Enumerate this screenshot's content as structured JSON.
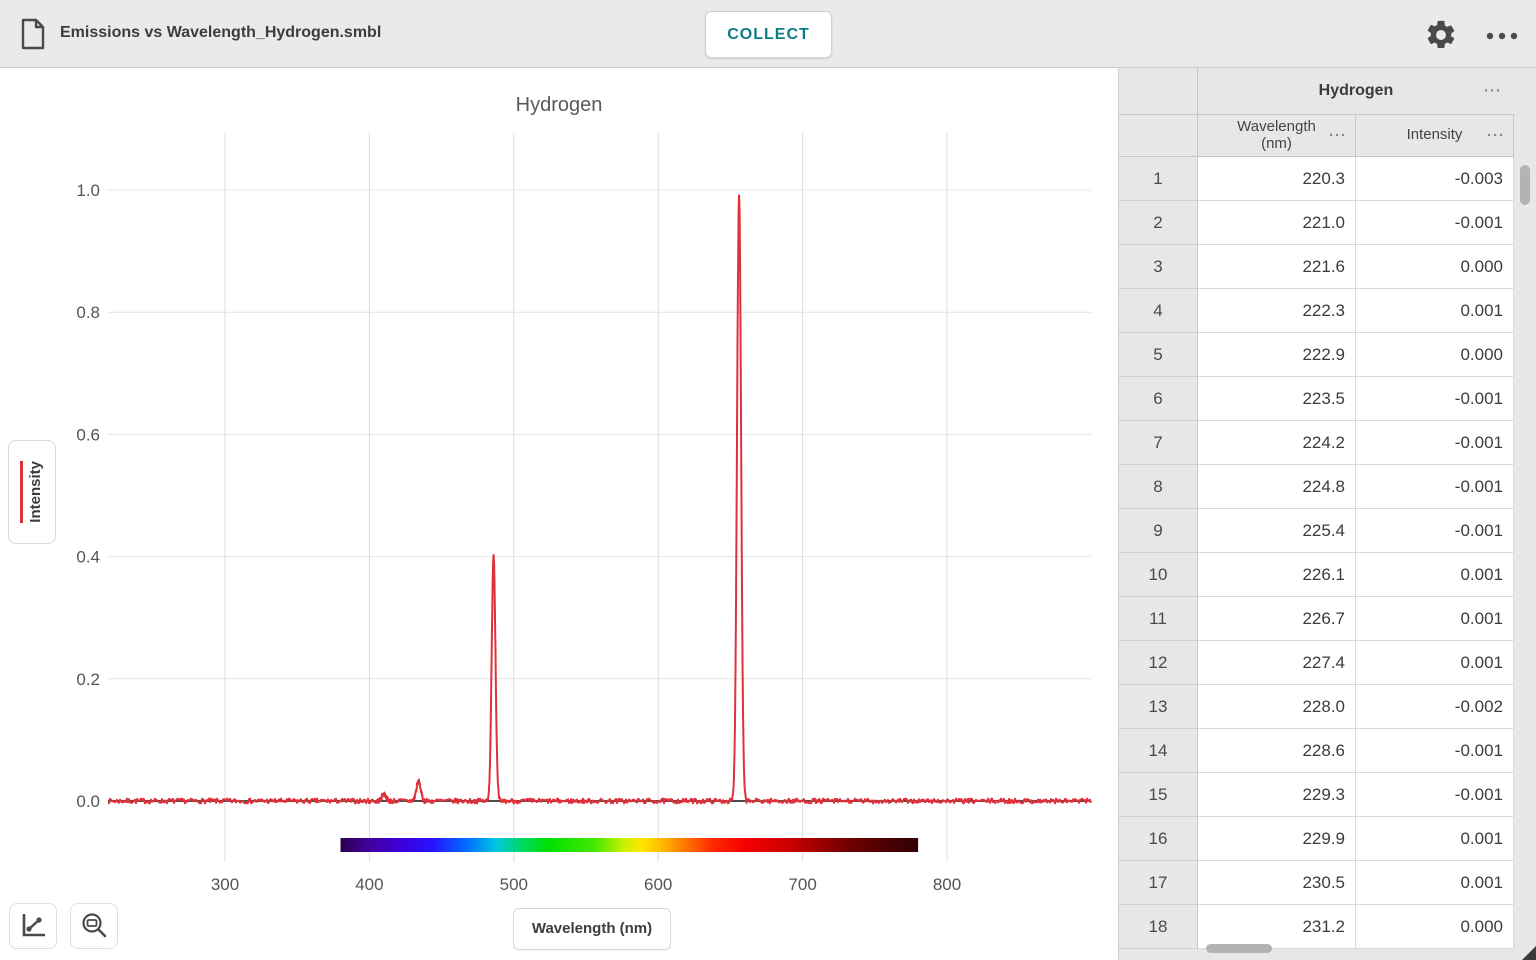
{
  "titlebar": {
    "filename": "Emissions vs Wavelength_Hydrogen.smbl",
    "collect_label": "COLLECT"
  },
  "icons": {
    "more_options": "···"
  },
  "chart_data": {
    "type": "line",
    "title": "Hydrogen",
    "xlabel": "Wavelength (nm)",
    "ylabel": "Intensity",
    "xlim": [
      219,
      898
    ],
    "ylim": [
      -0.1,
      1.09
    ],
    "x_ticks": [
      300,
      400,
      500,
      600,
      700,
      800
    ],
    "y_ticks": [
      "0.0",
      "0.2",
      "0.4",
      "0.6",
      "0.8",
      "1.0"
    ],
    "grid": true,
    "legend_position": "none",
    "series": [
      {
        "name": "Intensity",
        "color": "#e0303a",
        "baseline": 0.0,
        "noise_amplitude": 0.004,
        "peaks": [
          {
            "wavelength_nm": 410,
            "intensity": 0.012,
            "sigma_nm": 1.4
          },
          {
            "wavelength_nm": 434,
            "intensity": 0.032,
            "sigma_nm": 1.5
          },
          {
            "wavelength_nm": 486,
            "intensity": 0.403,
            "sigma_nm": 1.3
          },
          {
            "wavelength_nm": 656,
            "intensity": 0.993,
            "sigma_nm": 1.4
          }
        ]
      }
    ],
    "zero_line_color": "#4c4c4c",
    "spectrum_bar": {
      "from_nm": 380,
      "to_nm": 780,
      "stops": [
        {
          "o": 0.0,
          "c": "#2a004f"
        },
        {
          "o": 0.05,
          "c": "#44009f"
        },
        {
          "o": 0.11,
          "c": "#3c00e0"
        },
        {
          "o": 0.16,
          "c": "#2414ff"
        },
        {
          "o": 0.22,
          "c": "#0070ff"
        },
        {
          "o": 0.27,
          "c": "#00c8e0"
        },
        {
          "o": 0.31,
          "c": "#00d66e"
        },
        {
          "o": 0.36,
          "c": "#00e000"
        },
        {
          "o": 0.44,
          "c": "#46e800"
        },
        {
          "o": 0.49,
          "c": "#c8f000"
        },
        {
          "o": 0.52,
          "c": "#ffe800"
        },
        {
          "o": 0.56,
          "c": "#ffb400"
        },
        {
          "o": 0.6,
          "c": "#ff7000"
        },
        {
          "o": 0.645,
          "c": "#ff2800"
        },
        {
          "o": 0.7,
          "c": "#f50000"
        },
        {
          "o": 0.78,
          "c": "#c80000"
        },
        {
          "o": 0.88,
          "c": "#700000"
        },
        {
          "o": 1.0,
          "c": "#2e0005"
        }
      ]
    }
  },
  "table": {
    "dataset_title": "Hydrogen",
    "columns": [
      "Wavelength (nm)",
      "Intensity"
    ],
    "rows": [
      [
        "1",
        "220.3",
        "-0.003"
      ],
      [
        "2",
        "221.0",
        "-0.001"
      ],
      [
        "3",
        "221.6",
        "0.000"
      ],
      [
        "4",
        "222.3",
        "0.001"
      ],
      [
        "5",
        "222.9",
        "0.000"
      ],
      [
        "6",
        "223.5",
        "-0.001"
      ],
      [
        "7",
        "224.2",
        "-0.001"
      ],
      [
        "8",
        "224.8",
        "-0.001"
      ],
      [
        "9",
        "225.4",
        "-0.001"
      ],
      [
        "10",
        "226.1",
        "0.001"
      ],
      [
        "11",
        "226.7",
        "0.001"
      ],
      [
        "12",
        "227.4",
        "0.001"
      ],
      [
        "13",
        "228.0",
        "-0.002"
      ],
      [
        "14",
        "228.6",
        "-0.001"
      ],
      [
        "15",
        "229.3",
        "-0.001"
      ],
      [
        "16",
        "229.9",
        "0.001"
      ],
      [
        "17",
        "230.5",
        "0.001"
      ],
      [
        "18",
        "231.2",
        "0.000"
      ]
    ]
  }
}
